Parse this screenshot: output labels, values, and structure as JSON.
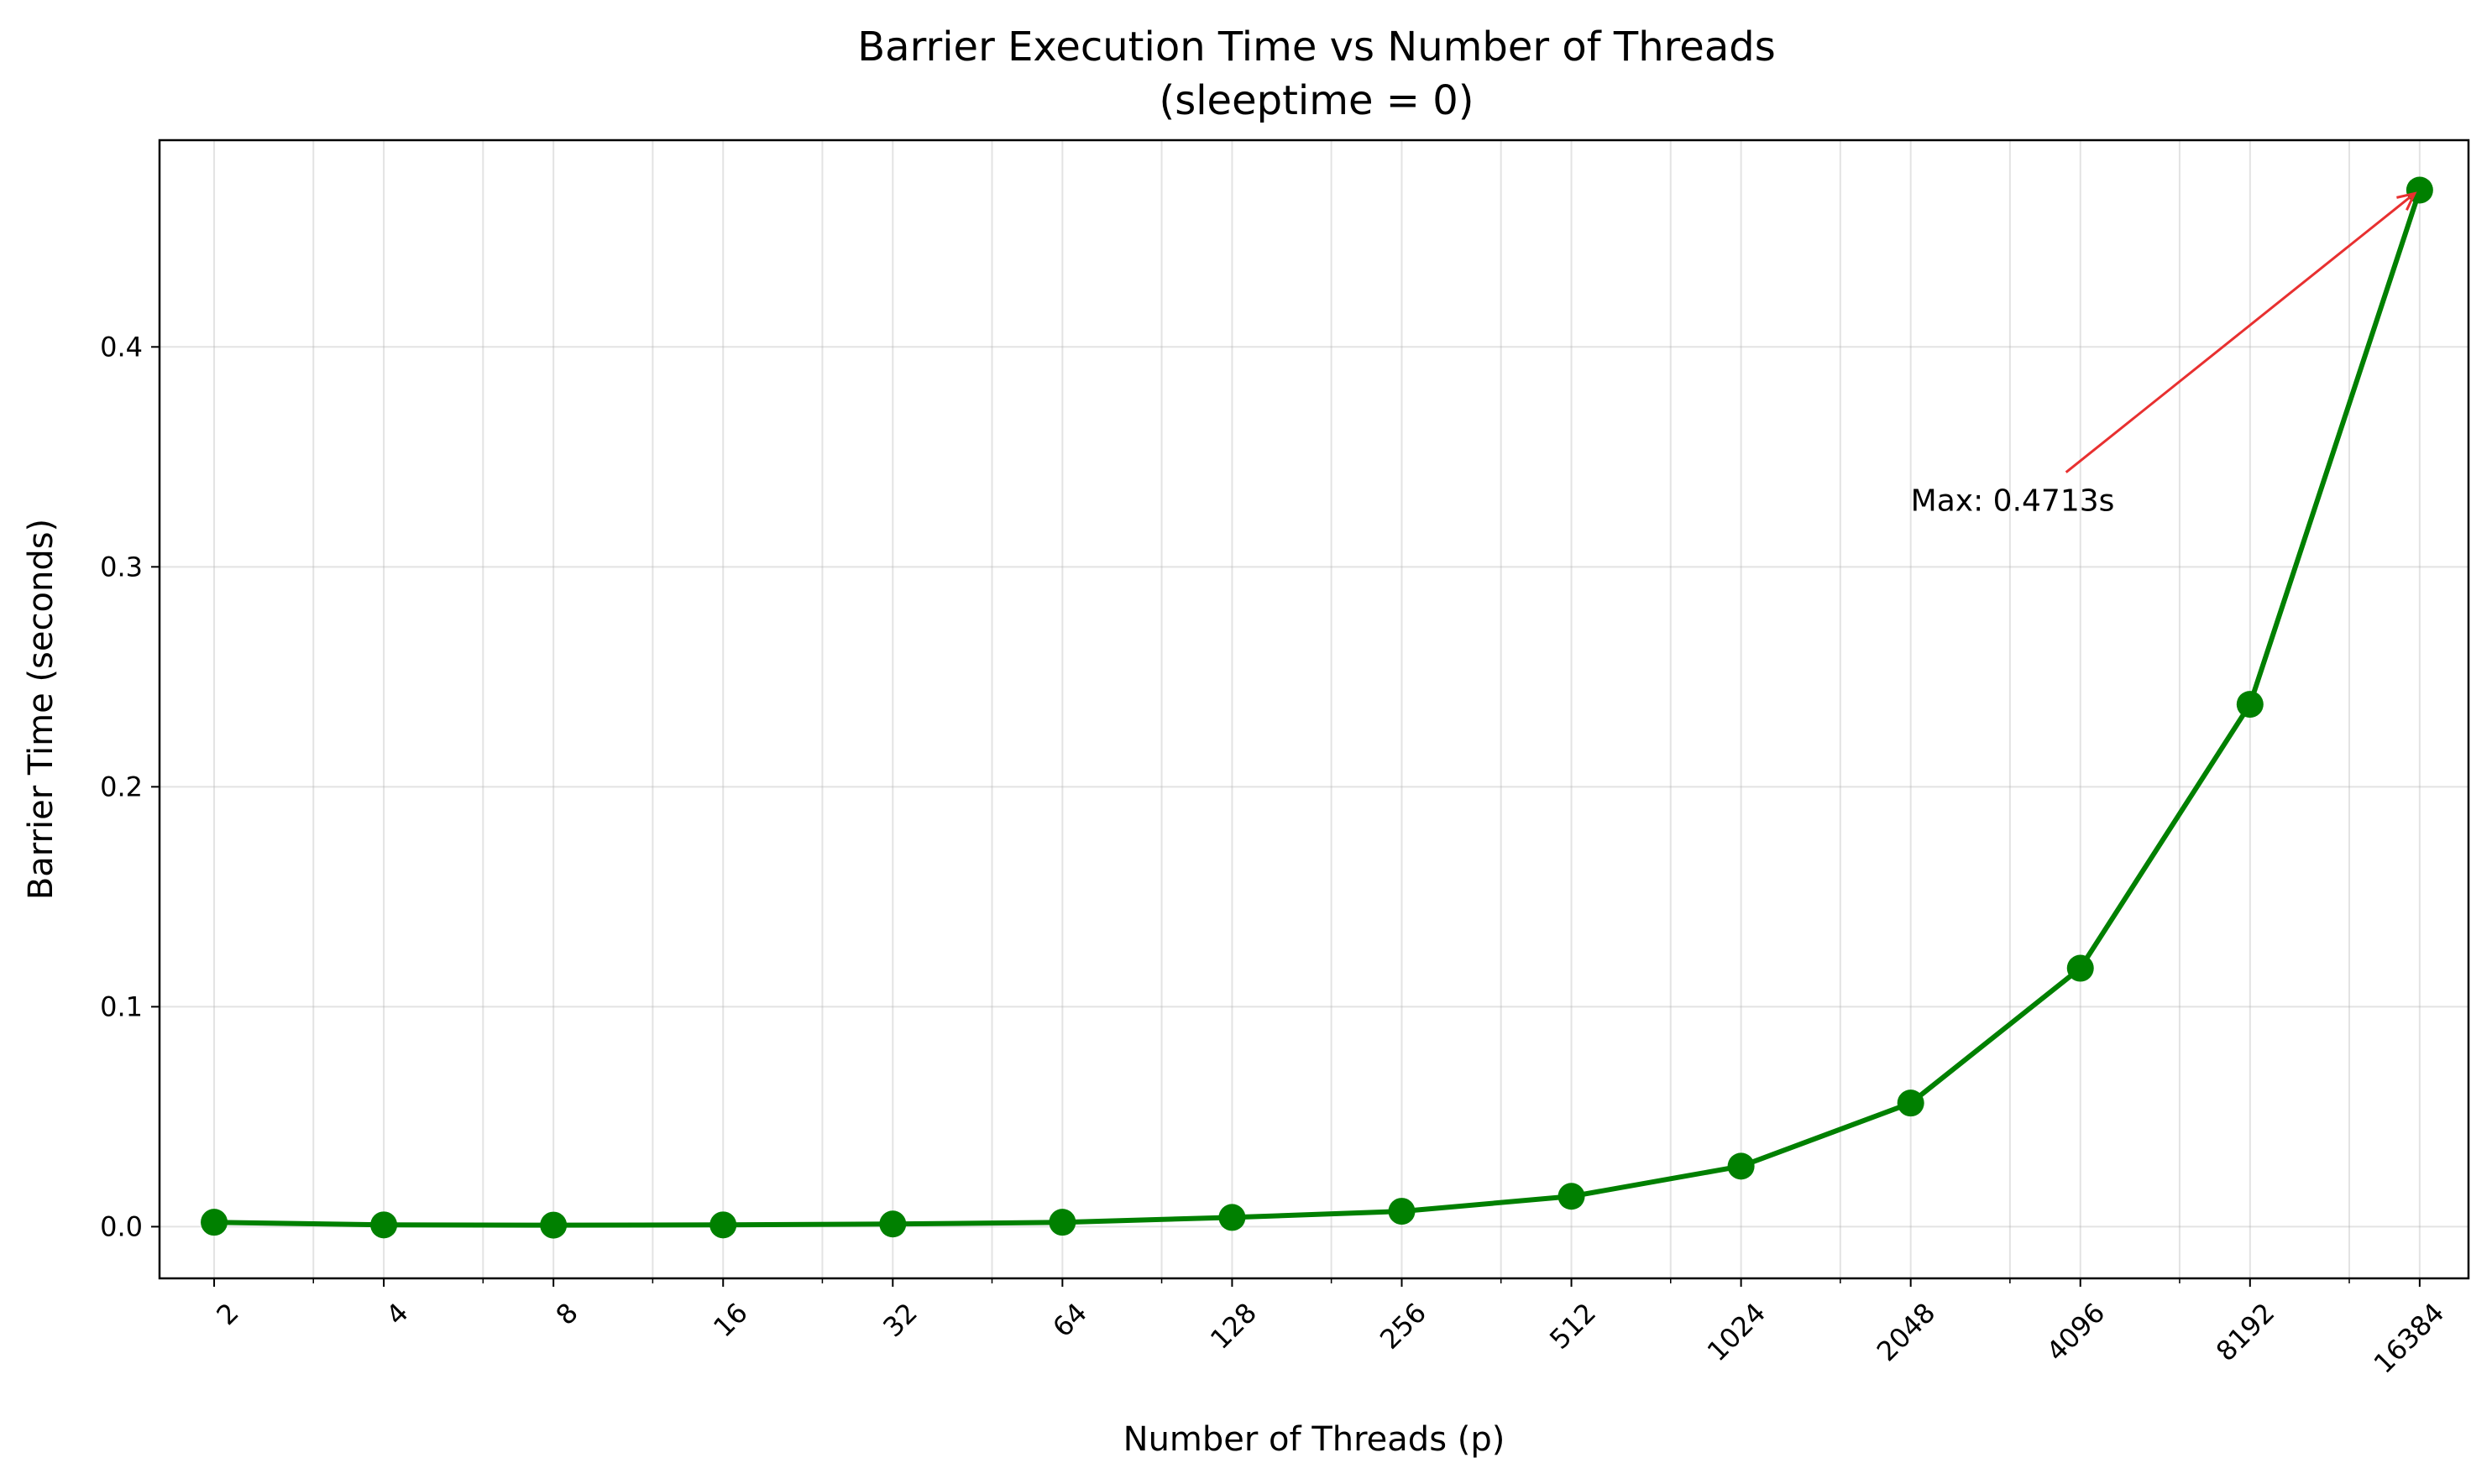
{
  "chart_data": {
    "type": "line",
    "title": "Barrier Execution Time vs Number of Threads",
    "subtitle": "(sleeptime = 0)",
    "xlabel": "Number of Threads (p)",
    "ylabel": "Barrier Time (seconds)",
    "x_scale": "log2",
    "xlim": [
      1.6,
      20000
    ],
    "ylim": [
      -0.0235,
      0.494
    ],
    "x_ticks": [
      2,
      4,
      8,
      16,
      32,
      64,
      128,
      256,
      512,
      1024,
      2048,
      4096,
      8192,
      16384
    ],
    "x_tick_labels": [
      "2",
      "4",
      "8",
      "16",
      "32",
      "64",
      "128",
      "256",
      "512",
      "1024",
      "2048",
      "4096",
      "8192",
      "16384"
    ],
    "y_ticks": [
      0.0,
      0.1,
      0.2,
      0.3,
      0.4
    ],
    "y_tick_labels": [
      "0.0",
      "0.1",
      "0.2",
      "0.3",
      "0.4"
    ],
    "grid": true,
    "series": [
      {
        "color": "#008000",
        "marker": "circle",
        "x": [
          2,
          4,
          8,
          16,
          32,
          64,
          128,
          256,
          512,
          1024,
          2048,
          4096,
          8192,
          16384
        ],
        "y": [
          0.002,
          0.0008,
          0.0007,
          0.0008,
          0.0012,
          0.002,
          0.0042,
          0.007,
          0.0138,
          0.0275,
          0.0562,
          0.1175,
          0.2375,
          0.4713
        ]
      }
    ],
    "annotation": {
      "text": "Max: 0.4713s",
      "target": [
        16384,
        0.4713
      ],
      "text_anchor": [
        2048,
        0.33
      ],
      "color": "#e83030"
    }
  }
}
